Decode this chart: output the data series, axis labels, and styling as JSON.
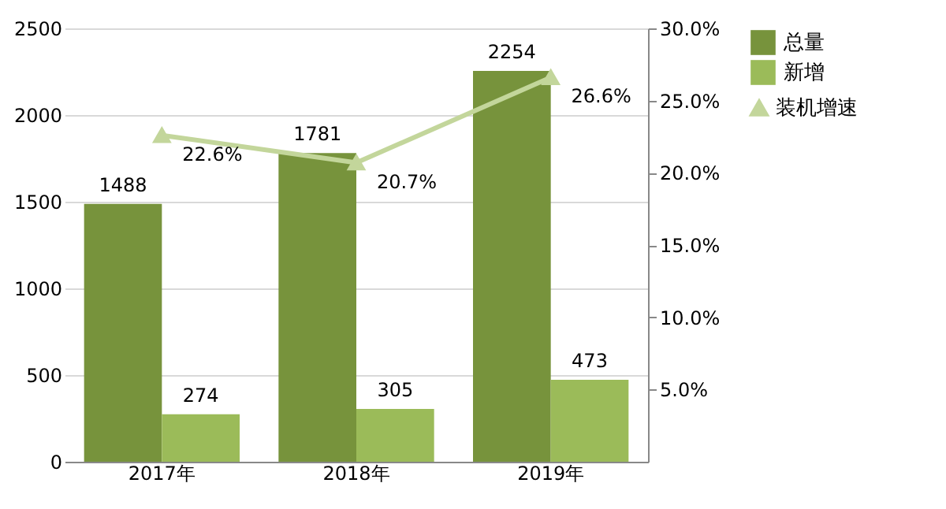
{
  "chart_data": {
    "type": "bar",
    "categories": [
      "2017年",
      "2018年",
      "2019年"
    ],
    "series": [
      {
        "name": "总量",
        "type": "bar",
        "color": "#77933c",
        "values": [
          1488,
          1781,
          2254
        ]
      },
      {
        "name": "新增",
        "type": "bar",
        "color": "#9bbb59",
        "values": [
          274,
          305,
          473
        ]
      },
      {
        "name": "装机增速",
        "type": "line",
        "axis": "y2",
        "color": "#c3d69b",
        "marker": "triangle",
        "values": [
          22.6,
          20.7,
          26.6
        ],
        "value_labels": [
          "22.6%",
          "20.7%",
          "26.6%"
        ]
      }
    ],
    "ylim": [
      0,
      2500
    ],
    "yticks": [
      0,
      500,
      1000,
      1500,
      2000,
      2500
    ],
    "y2lim": [
      0,
      30
    ],
    "y2ticks": [
      {
        "value": 5,
        "label": "5.0%"
      },
      {
        "value": 10,
        "label": "10.0%"
      },
      {
        "value": 15,
        "label": "15.0%"
      },
      {
        "value": 20,
        "label": "20.0%"
      },
      {
        "value": 25,
        "label": "25.0%"
      },
      {
        "value": 30,
        "label": "30.0%"
      }
    ],
    "data_labels": true,
    "grid": "y",
    "legend": "right"
  }
}
